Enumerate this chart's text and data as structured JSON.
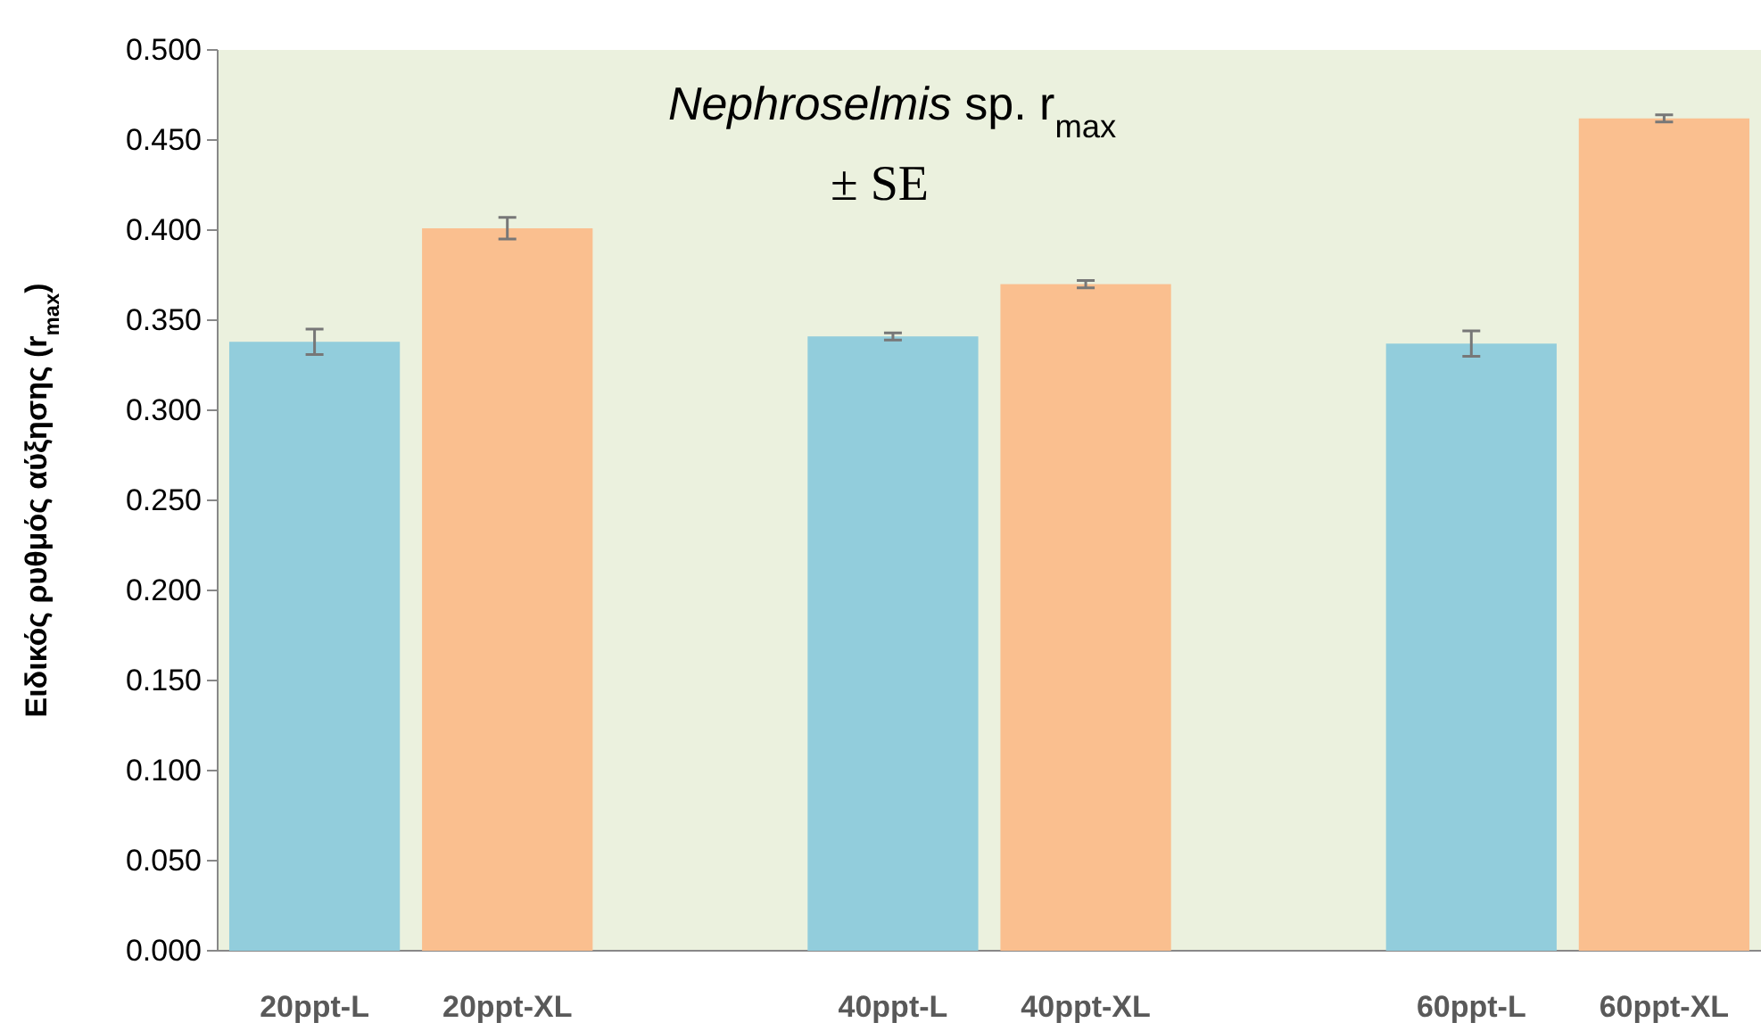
{
  "chart_data": {
    "type": "bar",
    "title": "Nephroselmis sp. r$_{max}$",
    "subtitle": "± SE",
    "ylabel": "Ειδικός ρυθμός αύξησης (r$_{max}$)",
    "categories": [
      "20ppt-L",
      "20ppt-XL",
      null,
      "40ppt-L",
      "40ppt-XL",
      null,
      "60ppt-L",
      "60ppt-XL"
    ],
    "values": [
      0.338,
      0.401,
      null,
      0.341,
      0.37,
      null,
      0.337,
      0.462
    ],
    "errors": [
      0.007,
      0.006,
      null,
      0.002,
      0.002,
      null,
      0.007,
      0.002
    ],
    "colors": [
      "#92cddc",
      "#fabf8f",
      null,
      "#92cddc",
      "#fabf8f",
      null,
      "#92cddc",
      "#fabf8f"
    ],
    "ylim": [
      0,
      0.5
    ],
    "yticks": [
      {
        "value": 0,
        "label": "0.000"
      },
      {
        "value": 0.05,
        "label": "0.050"
      },
      {
        "value": 0.1,
        "label": "0.100"
      },
      {
        "value": 0.15,
        "label": "0.150"
      },
      {
        "value": 0.2,
        "label": "0.200"
      },
      {
        "value": 0.25,
        "label": "0.250"
      },
      {
        "value": 0.3,
        "label": "0.300"
      },
      {
        "value": 0.35,
        "label": "0.350"
      },
      {
        "value": 0.4,
        "label": "0.400"
      },
      {
        "value": 0.45,
        "label": "0.450"
      },
      {
        "value": 0.5,
        "label": "0.500"
      }
    ],
    "grid": false
  }
}
